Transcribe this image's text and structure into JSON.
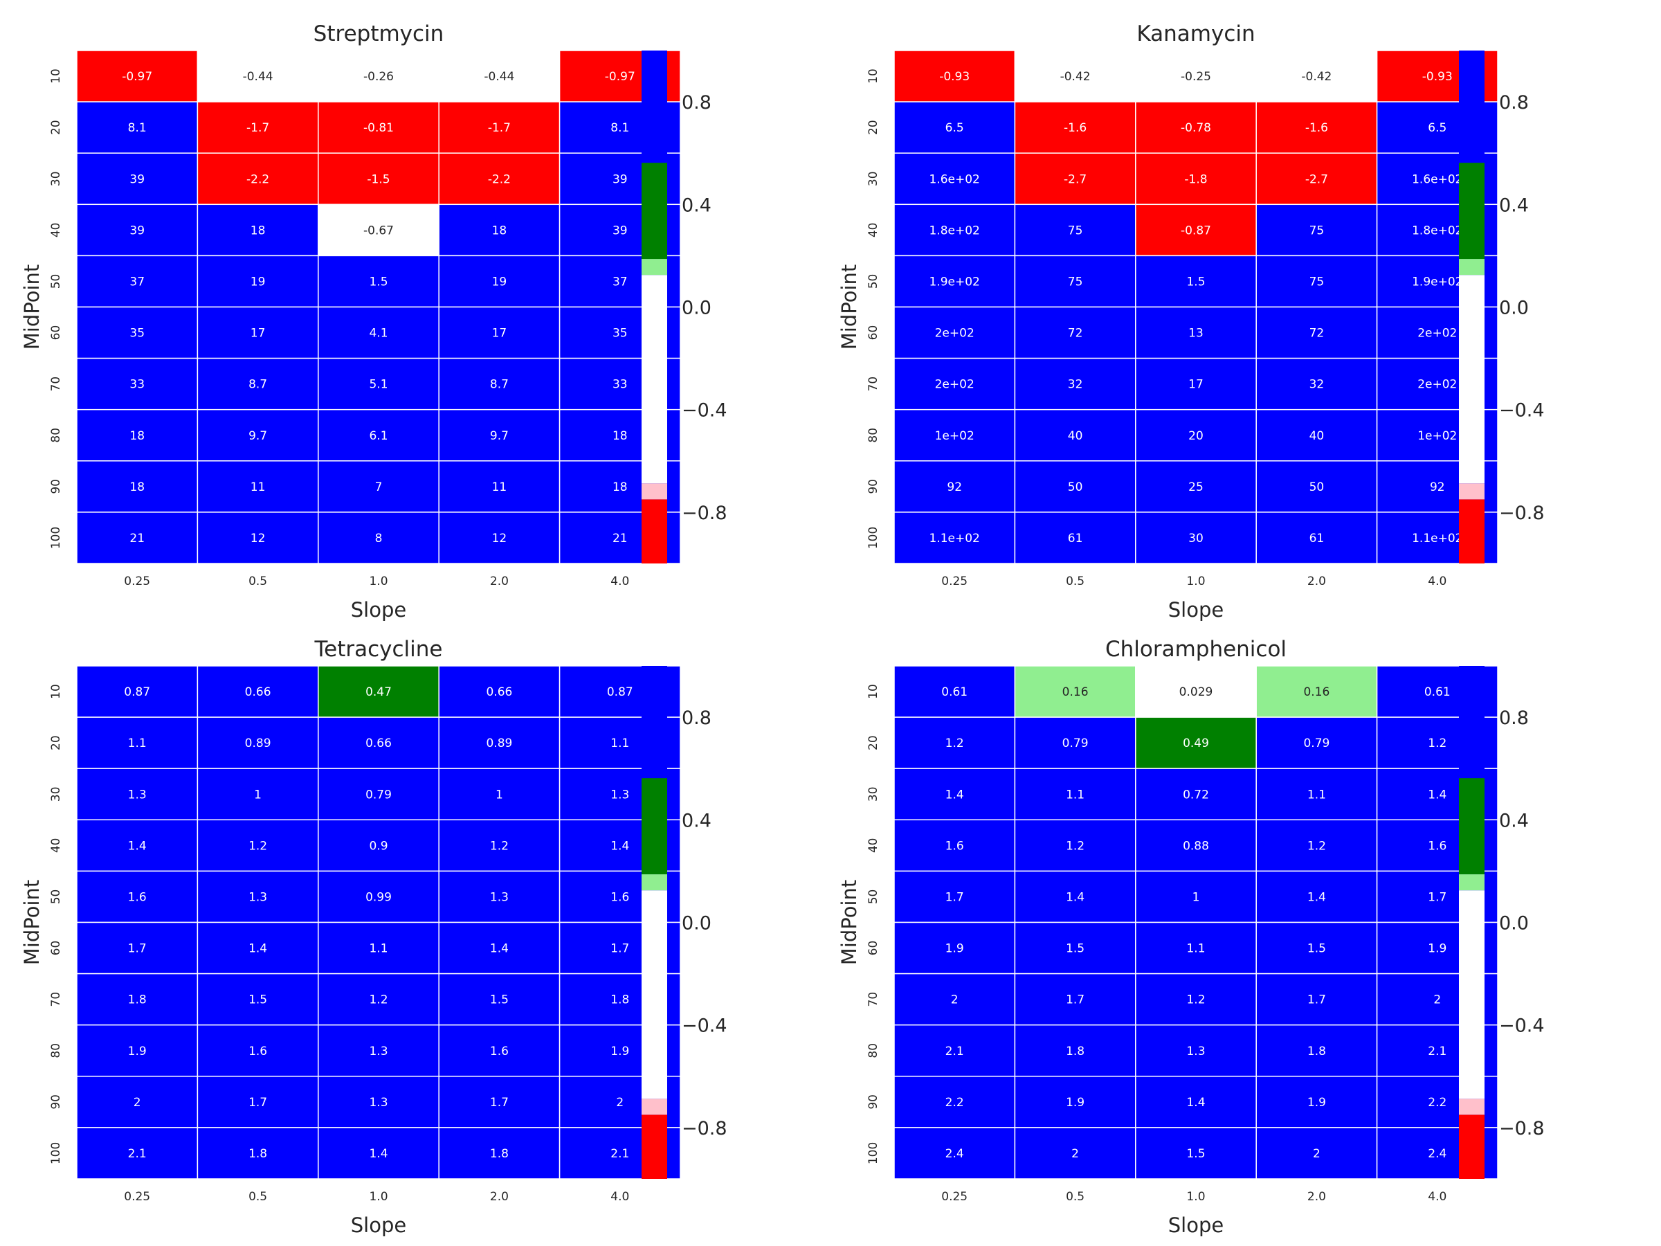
{
  "colorbar": {
    "ticks": [
      "0.8",
      "0.4",
      "0.0",
      "−0.4",
      "−0.8"
    ],
    "tick_values": [
      0.8,
      0.4,
      0.0,
      -0.4,
      -0.8
    ],
    "range": [
      -1.0,
      1.0
    ],
    "bands": [
      {
        "from": -1.0,
        "to": -0.75,
        "color": "#ff0000"
      },
      {
        "from": -0.75,
        "to": -0.6875,
        "color": "#ffc0cb"
      },
      {
        "from": -0.6875,
        "to": 0.125,
        "color": "#ffffff"
      },
      {
        "from": 0.125,
        "to": 0.1875,
        "color": "#90ee90"
      },
      {
        "from": 0.1875,
        "to": 0.5625,
        "color": "#008000"
      },
      {
        "from": 0.5625,
        "to": 1.0,
        "color": "#0000ff"
      }
    ]
  },
  "colors": {
    "red": "#ff0000",
    "pink": "#ffc0cb",
    "white": "#ffffff",
    "lightgreen": "#90ee90",
    "green": "#008000",
    "blue": "#0000ff",
    "gridline": "#ffffff"
  },
  "chart_data": [
    {
      "type": "heatmap",
      "title": "Streptmycin",
      "xlabel": "Slope",
      "ylabel": "MidPoint",
      "x": [
        "0.25",
        "0.5",
        "1.0",
        "2.0",
        "4.0"
      ],
      "y": [
        "10",
        "20",
        "30",
        "40",
        "50",
        "60",
        "70",
        "80",
        "90",
        "100"
      ],
      "labels": [
        [
          "-0.97",
          "-0.44",
          "-0.26",
          "-0.44",
          "-0.97"
        ],
        [
          "8.1",
          "-1.7",
          "-0.81",
          "-1.7",
          "8.1"
        ],
        [
          "39",
          "-2.2",
          "-1.5",
          "-2.2",
          "39"
        ],
        [
          "39",
          "18",
          "-0.67",
          "18",
          "39"
        ],
        [
          "37",
          "19",
          "1.5",
          "19",
          "37"
        ],
        [
          "35",
          "17",
          "4.1",
          "17",
          "35"
        ],
        [
          "33",
          "8.7",
          "5.1",
          "8.7",
          "33"
        ],
        [
          "18",
          "9.7",
          "6.1",
          "9.7",
          "18"
        ],
        [
          "18",
          "11",
          "7",
          "11",
          "18"
        ],
        [
          "21",
          "12",
          "8",
          "12",
          "21"
        ]
      ]
    },
    {
      "type": "heatmap",
      "title": "Kanamycin",
      "xlabel": "Slope",
      "ylabel": "MidPoint",
      "x": [
        "0.25",
        "0.5",
        "1.0",
        "2.0",
        "4.0"
      ],
      "y": [
        "10",
        "20",
        "30",
        "40",
        "50",
        "60",
        "70",
        "80",
        "90",
        "100"
      ],
      "labels": [
        [
          "-0.93",
          "-0.42",
          "-0.25",
          "-0.42",
          "-0.93"
        ],
        [
          "6.5",
          "-1.6",
          "-0.78",
          "-1.6",
          "6.5"
        ],
        [
          "1.6e+02",
          "-2.7",
          "-1.8",
          "-2.7",
          "1.6e+02"
        ],
        [
          "1.8e+02",
          "75",
          "-0.87",
          "75",
          "1.8e+02"
        ],
        [
          "1.9e+02",
          "75",
          "1.5",
          "75",
          "1.9e+02"
        ],
        [
          "2e+02",
          "72",
          "13",
          "72",
          "2e+02"
        ],
        [
          "2e+02",
          "32",
          "17",
          "32",
          "2e+02"
        ],
        [
          "1e+02",
          "40",
          "20",
          "40",
          "1e+02"
        ],
        [
          "92",
          "50",
          "25",
          "50",
          "92"
        ],
        [
          "1.1e+02",
          "61",
          "30",
          "61",
          "1.1e+02"
        ]
      ]
    },
    {
      "type": "heatmap",
      "title": "Tetracycline",
      "xlabel": "Slope",
      "ylabel": "MidPoint",
      "x": [
        "0.25",
        "0.5",
        "1.0",
        "2.0",
        "4.0"
      ],
      "y": [
        "10",
        "20",
        "30",
        "40",
        "50",
        "60",
        "70",
        "80",
        "90",
        "100"
      ],
      "labels": [
        [
          "0.87",
          "0.66",
          "0.47",
          "0.66",
          "0.87"
        ],
        [
          "1.1",
          "0.89",
          "0.66",
          "0.89",
          "1.1"
        ],
        [
          "1.3",
          "1",
          "0.79",
          "1",
          "1.3"
        ],
        [
          "1.4",
          "1.2",
          "0.9",
          "1.2",
          "1.4"
        ],
        [
          "1.6",
          "1.3",
          "0.99",
          "1.3",
          "1.6"
        ],
        [
          "1.7",
          "1.4",
          "1.1",
          "1.4",
          "1.7"
        ],
        [
          "1.8",
          "1.5",
          "1.2",
          "1.5",
          "1.8"
        ],
        [
          "1.9",
          "1.6",
          "1.3",
          "1.6",
          "1.9"
        ],
        [
          "2",
          "1.7",
          "1.3",
          "1.7",
          "2"
        ],
        [
          "2.1",
          "1.8",
          "1.4",
          "1.8",
          "2.1"
        ]
      ]
    },
    {
      "type": "heatmap",
      "title": "Chloramphenicol",
      "xlabel": "Slope",
      "ylabel": "MidPoint",
      "x": [
        "0.25",
        "0.5",
        "1.0",
        "2.0",
        "4.0"
      ],
      "y": [
        "10",
        "20",
        "30",
        "40",
        "50",
        "60",
        "70",
        "80",
        "90",
        "100"
      ],
      "labels": [
        [
          "0.61",
          "0.16",
          "0.029",
          "0.16",
          "0.61"
        ],
        [
          "1.2",
          "0.79",
          "0.49",
          "0.79",
          "1.2"
        ],
        [
          "1.4",
          "1.1",
          "0.72",
          "1.1",
          "1.4"
        ],
        [
          "1.6",
          "1.2",
          "0.88",
          "1.2",
          "1.6"
        ],
        [
          "1.7",
          "1.4",
          "1",
          "1.4",
          "1.7"
        ],
        [
          "1.9",
          "1.5",
          "1.1",
          "1.5",
          "1.9"
        ],
        [
          "2",
          "1.7",
          "1.2",
          "1.7",
          "2"
        ],
        [
          "2.1",
          "1.8",
          "1.3",
          "1.8",
          "2.1"
        ],
        [
          "2.2",
          "1.9",
          "1.4",
          "1.9",
          "2.2"
        ],
        [
          "2.4",
          "2",
          "1.5",
          "2",
          "2.4"
        ]
      ]
    }
  ]
}
